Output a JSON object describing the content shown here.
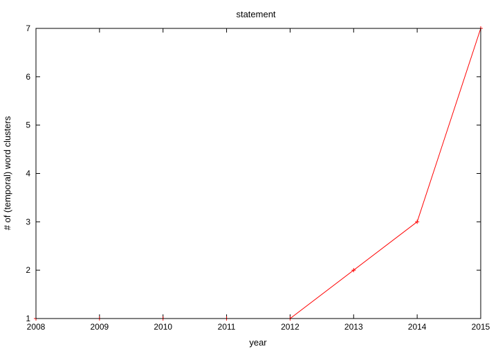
{
  "chart_data": {
    "type": "line",
    "title": "statement",
    "xlabel": "year",
    "ylabel": "# of (temporal) word clusters",
    "xlim": [
      2008,
      2015
    ],
    "ylim": [
      1,
      7
    ],
    "x_ticks": [
      "2008",
      "2009",
      "2010",
      "2011",
      "2012",
      "2013",
      "2014",
      "2015"
    ],
    "y_ticks": [
      "1",
      "2",
      "3",
      "4",
      "5",
      "6",
      "7"
    ],
    "grid": false,
    "legend": "none",
    "series": [
      {
        "color": "#ff0000",
        "marker": "plus",
        "x": [
          2008,
          2009,
          2010,
          2011,
          2012,
          2013,
          2014,
          2015
        ],
        "y": [
          1,
          1,
          1,
          1,
          1,
          2,
          3,
          7
        ]
      }
    ]
  }
}
